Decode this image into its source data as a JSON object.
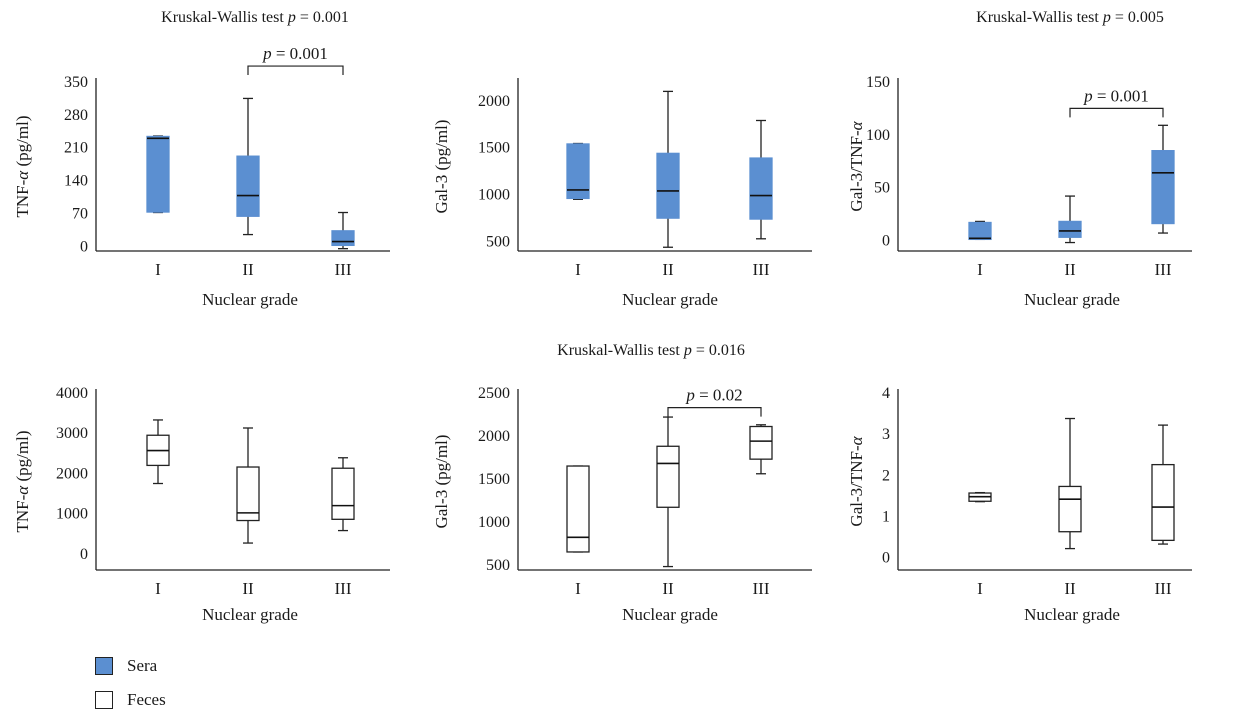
{
  "colors": {
    "sera": "#5b8fd1",
    "feces": "#ffffff",
    "stroke": "#222222"
  },
  "legend": {
    "items": [
      {
        "label": "Sera",
        "color": "#5b8fd1"
      },
      {
        "label": "Feces",
        "color": "#ffffff"
      }
    ]
  },
  "chart_data": [
    {
      "type": "box",
      "panel": "top-left",
      "test_prefix": "Kruskal-Wallis test ",
      "test_p": "p",
      "test_rest": " = 0.001",
      "xlabel": "Nuclear grade",
      "ylabel_pre": "TNF-",
      "ylabel_italic": "α",
      "ylabel_post": " (pg/ml)",
      "ylim": [
        -10,
        350
      ],
      "yticks": [
        0,
        70,
        140,
        210,
        280,
        350
      ],
      "categories": [
        "I",
        "II",
        "III"
      ],
      "fill": "sera",
      "boxes": [
        {
          "min": 72,
          "q1": 73,
          "median": 230,
          "q3": 234,
          "max": 235
        },
        {
          "min": 25,
          "q1": 64,
          "median": 108,
          "q3": 192,
          "max": 315
        },
        {
          "min": -5,
          "q1": 2,
          "median": 10,
          "q3": 33,
          "max": 72
        }
      ],
      "bracket": {
        "from": "II",
        "to": "III",
        "p": "p",
        "text": " = 0.001",
        "y": 384
      }
    },
    {
      "type": "box",
      "panel": "top-middle",
      "xlabel": "Nuclear grade",
      "ylabel_pre": "Gal-3 (pg/ml)",
      "ylim": [
        400,
        2200
      ],
      "yticks": [
        500,
        1000,
        1500,
        2000
      ],
      "categories": [
        "I",
        "II",
        "III"
      ],
      "fill": "sera",
      "boxes": [
        {
          "min": 950,
          "q1": 960,
          "median": 1050,
          "q3": 1540,
          "max": 1545
        },
        {
          "min": 440,
          "q1": 750,
          "median": 1040,
          "q3": 1440,
          "max": 2100
        },
        {
          "min": 530,
          "q1": 740,
          "median": 990,
          "q3": 1390,
          "max": 1790
        }
      ]
    },
    {
      "type": "box",
      "panel": "top-right",
      "test_prefix": "Kruskal-Wallis test ",
      "test_p": "p",
      "test_rest": " = 0.005",
      "xlabel": "Nuclear grade",
      "ylabel_pre": "Gal-3/TNF-",
      "ylabel_italic": "α",
      "ylabel_post": "",
      "ylim": [
        -10,
        150
      ],
      "yticks": [
        0,
        50,
        100,
        150
      ],
      "categories": [
        "I",
        "II",
        "III"
      ],
      "fill": "sera",
      "boxes": [
        {
          "min": 1,
          "q1": 1,
          "median": 2,
          "q3": 17,
          "max": 18
        },
        {
          "min": -2,
          "q1": 3,
          "median": 9,
          "q3": 18,
          "max": 42
        },
        {
          "min": 7,
          "q1": 16,
          "median": 64,
          "q3": 85,
          "max": 109
        }
      ],
      "bracket": {
        "from": "II",
        "to": "III",
        "p": "p",
        "text": " = 0.001",
        "y": 125
      }
    },
    {
      "type": "box",
      "panel": "bottom-left",
      "xlabel": "Nuclear grade",
      "ylabel_pre": "TNF-",
      "ylabel_italic": "α",
      "ylabel_post": " (pg/ml)",
      "ylim": [
        -400,
        4000
      ],
      "yticks": [
        0,
        1000,
        2000,
        3000,
        4000
      ],
      "categories": [
        "I",
        "II",
        "III"
      ],
      "fill": "feces",
      "boxes": [
        {
          "min": 1750,
          "q1": 2200,
          "median": 2570,
          "q3": 2950,
          "max": 3330
        },
        {
          "min": 270,
          "q1": 830,
          "median": 1020,
          "q3": 2160,
          "max": 3130
        },
        {
          "min": 580,
          "q1": 860,
          "median": 1200,
          "q3": 2130,
          "max": 2390
        }
      ]
    },
    {
      "type": "box",
      "panel": "bottom-middle",
      "test_prefix": "Kruskal-Wallis test ",
      "test_p": "p",
      "test_rest": " = 0.016",
      "xlabel": "Nuclear grade",
      "ylabel_pre": "Gal-3 (pg/ml)",
      "ylim": [
        440,
        2500
      ],
      "yticks": [
        500,
        1000,
        1500,
        2000,
        2500
      ],
      "categories": [
        "I",
        "II",
        "III"
      ],
      "fill": "feces",
      "boxes": [
        {
          "min": 650,
          "q1": 650,
          "median": 820,
          "q3": 1650,
          "max": 1650
        },
        {
          "min": 480,
          "q1": 1170,
          "median": 1680,
          "q3": 1880,
          "max": 2220
        },
        {
          "min": 1560,
          "q1": 1730,
          "median": 1940,
          "q3": 2110,
          "max": 2130
        }
      ],
      "bracket": {
        "from": "II",
        "to": "III",
        "p": "p",
        "text": " = 0.02",
        "y": 2330
      }
    },
    {
      "type": "box",
      "panel": "bottom-right",
      "xlabel": "Nuclear grade",
      "ylabel_pre": "Gal-3/TNF-",
      "ylabel_italic": "α",
      "ylabel_post": "",
      "ylim": [
        -0.3,
        4
      ],
      "yticks": [
        0,
        1,
        2,
        3,
        4
      ],
      "categories": [
        "I",
        "II",
        "III"
      ],
      "fill": "feces",
      "boxes": [
        {
          "min": 1.36,
          "q1": 1.37,
          "median": 1.48,
          "q3": 1.57,
          "max": 1.58
        },
        {
          "min": 0.22,
          "q1": 0.63,
          "median": 1.42,
          "q3": 1.73,
          "max": 3.38
        },
        {
          "min": 0.33,
          "q1": 0.42,
          "median": 1.23,
          "q3": 2.26,
          "max": 3.22
        }
      ]
    }
  ]
}
